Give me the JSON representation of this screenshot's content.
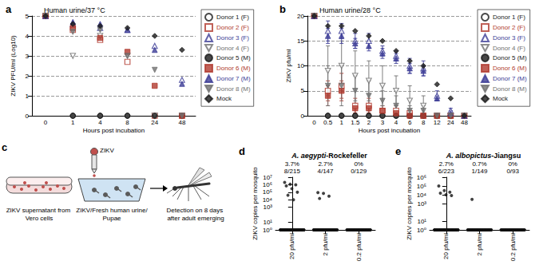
{
  "chart_data": [
    {
      "panel_label": "a",
      "type": "scatter",
      "title": "Human urine/37 °C",
      "x_label": "Hours post incubation",
      "y_label": "ZIKV PFU/ml (Log10)",
      "categories": [
        "0",
        "1",
        "4",
        "8",
        "24",
        "48"
      ],
      "ylim": [
        0,
        5
      ],
      "yticks": [
        0,
        1,
        2,
        3,
        4,
        5
      ],
      "grid": true,
      "legend": "right",
      "series": [
        {
          "name": "Donor 1 (F)",
          "color": "#1a1a1a",
          "marker": "circle-open",
          "values": [
            5,
            0,
            0,
            0,
            0,
            0
          ]
        },
        {
          "name": "Donor 2 (F)",
          "color": "#b03a2e",
          "marker": "square-open",
          "values": [
            5,
            4.3,
            3.8,
            2.7,
            0,
            0
          ]
        },
        {
          "name": "Donor 3 (F)",
          "color": "#3c3c96",
          "marker": "triangle-open",
          "values": [
            5,
            4.6,
            4.4,
            4.3,
            3.5,
            1.8
          ]
        },
        {
          "name": "Donor 4 (F)",
          "color": "#707070",
          "marker": "triangle-down-open",
          "values": [
            5,
            3.0,
            4.0,
            3.0,
            0,
            0
          ]
        },
        {
          "name": "Donor 5 (M)",
          "color": "#1a1a1a",
          "marker": "circle",
          "values": [
            5,
            0,
            0,
            0,
            0,
            0
          ]
        },
        {
          "name": "Donor 6 (M)",
          "color": "#b03a2e",
          "marker": "square",
          "values": [
            5,
            4.4,
            3.9,
            3.2,
            1.5,
            0
          ]
        },
        {
          "name": "Donor 7 (M)",
          "color": "#3c3c96",
          "marker": "triangle",
          "values": [
            5,
            4.7,
            4.6,
            4.3,
            3.3,
            1.6
          ]
        },
        {
          "name": "Donor 8 (M)",
          "color": "#707070",
          "marker": "triangle-down",
          "values": [
            5,
            4.2,
            4.3,
            3.0,
            2.3,
            0
          ]
        },
        {
          "name": "Mock",
          "color": "#1a1a1a",
          "marker": "diamond",
          "values": [
            5,
            4.6,
            4.5,
            4.4,
            4.0,
            3.3
          ]
        }
      ]
    },
    {
      "panel_label": "b",
      "type": "scatter",
      "title": "Human urine/28 °C",
      "x_label": "Hours post incubation",
      "y_label": "ZIKV pfu/ml",
      "categories": [
        "0",
        "0.5",
        "1",
        "1.5",
        "2",
        "3",
        "4",
        "6",
        "8",
        "12",
        "24",
        "48"
      ],
      "ylim": [
        0,
        20
      ],
      "yticks": [
        0,
        5,
        10,
        15,
        20
      ],
      "grid": true,
      "legend": "right",
      "series": [
        {
          "name": "Donor 1 (F)",
          "color": "#1a1a1a",
          "marker": "circle-open",
          "values": [
            20,
            0,
            0,
            0,
            0,
            0,
            0,
            0,
            0,
            0,
            0,
            0
          ]
        },
        {
          "name": "Donor 2 (F)",
          "color": "#b03a2e",
          "marker": "square-open",
          "values": [
            20,
            5,
            6,
            2,
            2,
            1,
            1,
            0.5,
            0,
            0,
            0,
            0
          ],
          "errors": [
            0,
            2,
            2.5,
            1.5,
            1.5,
            1,
            1,
            0.5,
            0,
            0,
            0,
            0
          ]
        },
        {
          "name": "Donor 3 (F)",
          "color": "#3c3c96",
          "marker": "triangle-open",
          "values": [
            20,
            17,
            17,
            15,
            15,
            13,
            12,
            10,
            9.5,
            4,
            1,
            0
          ],
          "errors": [
            0,
            2,
            1.5,
            1.5,
            1.5,
            1,
            1,
            1.5,
            1.5,
            1,
            0.5,
            0
          ]
        },
        {
          "name": "Donor 4 (F)",
          "color": "#707070",
          "marker": "triangle-down-open",
          "values": [
            20,
            9,
            10,
            8,
            7,
            6,
            5,
            3,
            2,
            0,
            0,
            0
          ],
          "errors": [
            0,
            5,
            5,
            5,
            4,
            4,
            3,
            3,
            2,
            0,
            0,
            0
          ]
        },
        {
          "name": "Donor 5 (M)",
          "color": "#1a1a1a",
          "marker": "circle",
          "values": [
            20,
            0,
            0,
            0,
            0,
            0,
            0,
            0,
            0,
            0,
            0,
            0
          ]
        },
        {
          "name": "Donor 6 (M)",
          "color": "#b03a2e",
          "marker": "square",
          "values": [
            20,
            4,
            5,
            1.5,
            1.5,
            1,
            0.5,
            0,
            0,
            0,
            0,
            0
          ],
          "errors": [
            0,
            2,
            2,
            1,
            1,
            0.5,
            0.5,
            0,
            0,
            0,
            0,
            0
          ]
        },
        {
          "name": "Donor 7 (M)",
          "color": "#3c3c96",
          "marker": "triangle",
          "values": [
            20,
            16,
            16,
            14.5,
            14,
            12.5,
            11.5,
            9.5,
            9,
            3.5,
            0.5,
            0
          ],
          "errors": [
            0,
            1.5,
            1.5,
            1,
            1,
            1,
            1,
            1,
            1,
            0.5,
            0.5,
            0
          ]
        },
        {
          "name": "Donor 8 (M)",
          "color": "#707070",
          "marker": "triangle-down",
          "values": [
            20,
            6,
            6,
            5,
            4,
            3,
            2,
            1,
            1,
            0,
            0,
            0
          ],
          "errors": [
            0,
            4,
            4,
            3,
            3,
            2,
            2,
            1,
            1,
            0,
            0,
            0
          ]
        },
        {
          "name": "Mock",
          "color": "#1a1a1a",
          "marker": "diamond",
          "values": [
            20,
            18,
            18,
            17,
            16,
            15,
            13,
            11,
            10,
            6.3,
            3.5,
            0
          ]
        }
      ]
    },
    {
      "panel_label": "d",
      "type": "strip",
      "title": "A. aegypti-Rockefeller",
      "y_label": "ZIKV copies per mosquito",
      "log": "y",
      "grid": false,
      "color": "#111111",
      "categories": [
        "20 pfu/ml",
        "2 pfu/ml",
        "0.2 pfu/ml"
      ],
      "annotations": [
        [
          "3.7%",
          "8/215"
        ],
        [
          "2.7%",
          "4/147"
        ],
        [
          "0%",
          "0/129"
        ]
      ],
      "positives": [
        [
          2000000,
          1200000,
          1000000,
          700000,
          300000,
          100000,
          40000,
          10000
        ],
        [
          90000,
          70000,
          30000,
          15000
        ],
        []
      ],
      "negatives": [
        207,
        143,
        129
      ],
      "negative_value": 1,
      "ylim": [
        1,
        10000000
      ],
      "yticks": [
        {
          "value": 1,
          "label": "10⁰"
        },
        {
          "value": 10,
          "label": "10¹"
        },
        {
          "value": 1000,
          "label": "10³"
        },
        {
          "value": 10000,
          "label": "10⁴"
        },
        {
          "value": 100000,
          "label": "10⁵"
        },
        {
          "value": 1000000,
          "label": "10⁶"
        },
        {
          "value": 10000000,
          "label": "10⁷"
        }
      ]
    },
    {
      "panel_label": "e",
      "type": "strip",
      "title": "A. albopictus-Jiangsu",
      "y_label": "ZIKV copies per mosquito",
      "log": "y",
      "grid": false,
      "color": "#111111",
      "categories": [
        "20 pfu/ml",
        "2 pfu/ml",
        "0.2 pfu/ml"
      ],
      "annotations": [
        [
          "2.7%",
          "6/223"
        ],
        [
          "0.7%",
          "1/149"
        ],
        [
          "0%",
          "0/93"
        ]
      ],
      "positives": [
        [
          100000,
          30000,
          20000,
          15000,
          10000,
          8000
        ],
        [
          3000
        ],
        []
      ],
      "negatives": [
        217,
        148,
        93
      ],
      "negative_value": 1,
      "ylim": [
        1,
        1000000
      ],
      "yticks": [
        {
          "value": 1,
          "label": "10⁰"
        },
        {
          "value": 10,
          "label": "10¹"
        },
        {
          "value": 1000,
          "label": "10³"
        },
        {
          "value": 10000,
          "label": "10⁴"
        },
        {
          "value": 100000,
          "label": "10⁵"
        },
        {
          "value": 1000000,
          "label": "10⁶"
        }
      ]
    }
  ],
  "diagram": {
    "panel_label": "c",
    "dropper_label": "ZIKV",
    "labels": [
      "ZIKV supernatant from Vero cells",
      "ZIKV/Fresh human urine/Pupae",
      "Detection on 8 days after adult emerging"
    ]
  }
}
